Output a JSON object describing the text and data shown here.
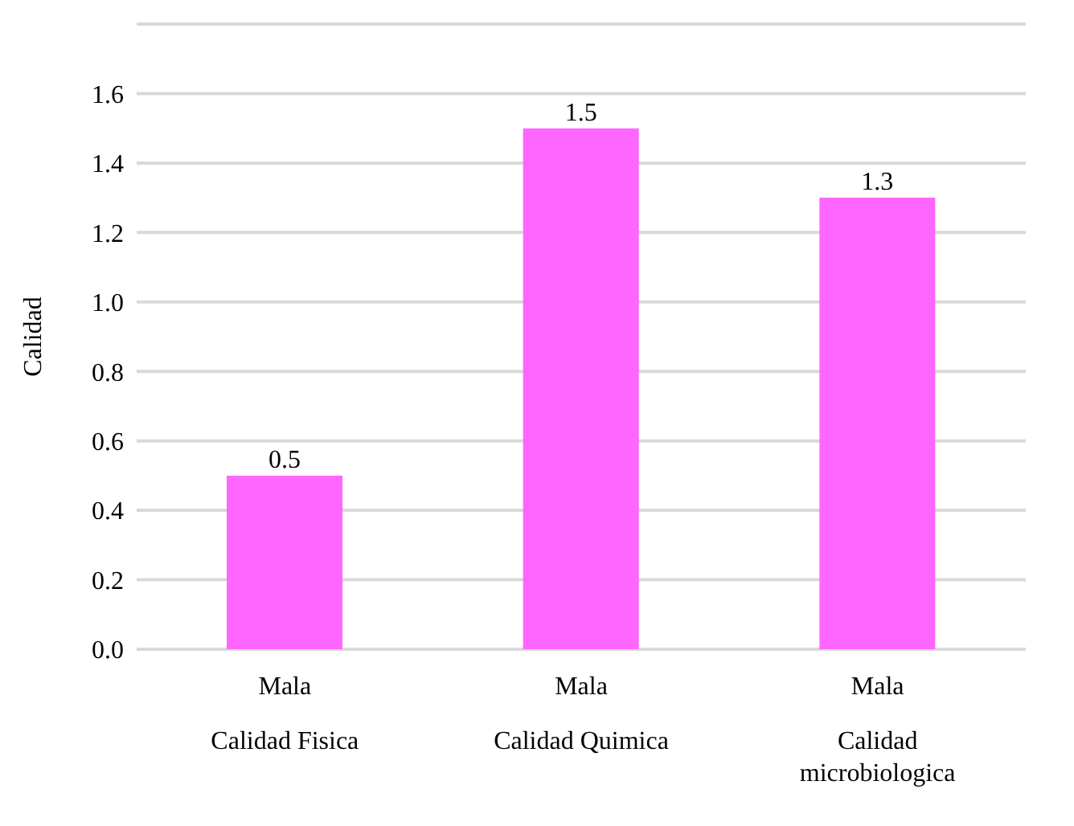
{
  "chart_data": {
    "type": "bar",
    "ylabel": "Calidad",
    "categories": [
      "Mala\nCalidad Fisica",
      "Mala\nCalidad Quimica",
      "Mala\nCalidad\nmicrobiologica"
    ],
    "values": [
      0.5,
      1.5,
      1.3
    ],
    "color": "#ff66ff",
    "ylim": [
      0,
      1.8
    ],
    "yticks": [
      {
        "value": 0,
        "label": "0.0"
      },
      {
        "value": 0.2,
        "label": "0.2"
      },
      {
        "value": 0.4,
        "label": "0.4"
      },
      {
        "value": 0.6,
        "label": "0.6"
      },
      {
        "value": 0.8,
        "label": "0.8"
      },
      {
        "value": 1,
        "label": "1.0"
      },
      {
        "value": 1.2,
        "label": "1.2"
      },
      {
        "value": 1.4,
        "label": "1.4"
      },
      {
        "value": 1.6,
        "label": "1.6"
      },
      {
        "value": 1.8,
        "label": null
      }
    ],
    "grid": "y",
    "data_labels": true
  }
}
